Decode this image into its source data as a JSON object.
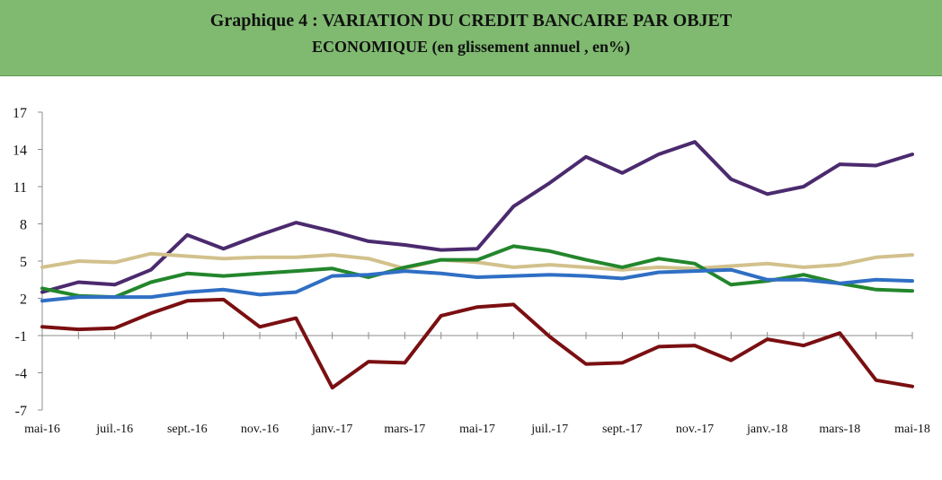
{
  "header": {
    "title_line1": "Graphique 4 : VARIATION DU CREDIT BANCAIRE PAR OBJET",
    "title_line2": "ECONOMIQUE (en glissement annuel , en%)"
  },
  "chart_data": {
    "type": "line",
    "title": "Graphique 4 : VARIATION DU CREDIT BANCAIRE PAR OBJET ECONOMIQUE (en glissement annuel , en%)",
    "xlabel": "",
    "ylabel": "",
    "ylim": [
      -7,
      17
    ],
    "yticks": [
      "17",
      "14",
      "11",
      "8",
      "5",
      "2",
      "-1",
      "-4",
      "-7"
    ],
    "ytick_values": [
      17,
      14,
      11,
      8,
      5,
      2,
      -1,
      -4,
      -7
    ],
    "x_tick_labels": [
      "mai-16",
      "juil.-16",
      "sept.-16",
      "nov.-16",
      "janv.-17",
      "mars-17",
      "mai-17",
      "juil.-17",
      "sept.-17",
      "nov.-17",
      "janv.-18",
      "mars-18",
      "mai-18"
    ],
    "x": [
      "mai-16",
      "juin-16",
      "juil.-16",
      "août-16",
      "sept.-16",
      "oct.-16",
      "nov.-16",
      "déc.-16",
      "janv.-17",
      "févr.-17",
      "mars-17",
      "avr.-17",
      "mai-17",
      "juin-17",
      "juil.-17",
      "août-17",
      "sept.-17",
      "oct.-17",
      "nov.-17",
      "déc.-17",
      "janv.-18",
      "févr.-18",
      "mars-18",
      "avr.-18",
      "mai-18"
    ],
    "grid": false,
    "series": [
      {
        "color": "#4b2a6e",
        "values": [
          2.5,
          3.3,
          3.1,
          4.3,
          7.1,
          6.0,
          7.1,
          8.1,
          7.4,
          6.6,
          6.3,
          5.9,
          6.0,
          9.4,
          11.3,
          13.4,
          12.1,
          13.6,
          14.6,
          11.6,
          10.4,
          11.0,
          12.8,
          12.7,
          13.6
        ]
      },
      {
        "color": "#d2c18c",
        "values": [
          4.5,
          5.0,
          4.9,
          5.6,
          5.4,
          5.2,
          5.3,
          5.3,
          5.5,
          5.2,
          4.4,
          5.1,
          4.9,
          4.5,
          4.7,
          4.5,
          4.3,
          4.5,
          4.4,
          4.6,
          4.8,
          4.5,
          4.7,
          5.3,
          5.5
        ]
      },
      {
        "color": "#23862c",
        "values": [
          2.8,
          2.2,
          2.1,
          3.3,
          4.0,
          3.8,
          4.0,
          4.2,
          4.4,
          3.7,
          4.5,
          5.1,
          5.1,
          6.2,
          5.8,
          5.1,
          4.5,
          5.2,
          4.8,
          3.1,
          3.4,
          3.9,
          3.2,
          2.7,
          2.6
        ]
      },
      {
        "color": "#2f6fc4",
        "values": [
          1.8,
          2.1,
          2.1,
          2.1,
          2.5,
          2.7,
          2.3,
          2.5,
          3.8,
          3.9,
          4.2,
          4.0,
          3.7,
          3.8,
          3.9,
          3.8,
          3.6,
          4.1,
          4.2,
          4.3,
          3.5,
          3.5,
          3.2,
          3.5,
          3.4
        ]
      },
      {
        "color": "#7a0f12",
        "values": [
          -0.3,
          -0.5,
          -0.4,
          0.8,
          1.8,
          1.9,
          -0.3,
          0.4,
          -5.2,
          -3.1,
          -3.2,
          0.6,
          1.3,
          1.5,
          -1.1,
          -3.3,
          -3.2,
          -1.9,
          -1.8,
          -3.0,
          -1.3,
          -1.8,
          -0.8,
          -4.6,
          -5.1
        ]
      }
    ]
  }
}
